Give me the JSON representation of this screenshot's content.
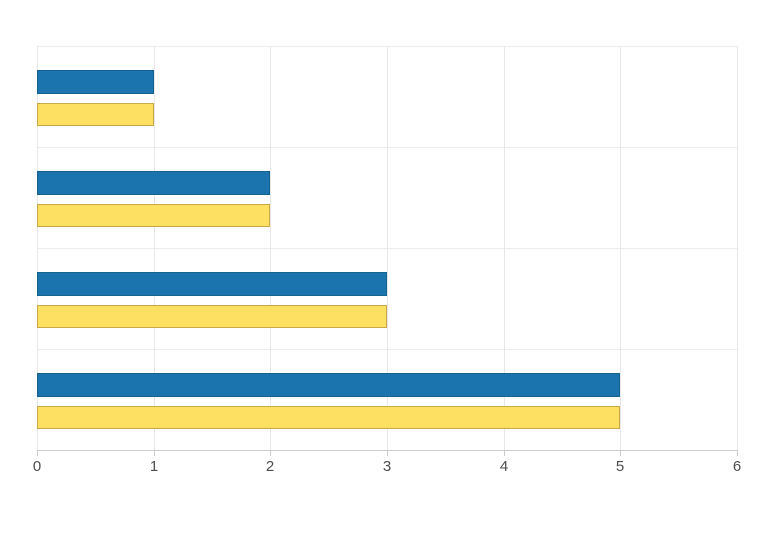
{
  "chart_data": {
    "type": "bar",
    "orientation": "horizontal",
    "title": "",
    "xlabel": "",
    "ylabel": "",
    "xlim": [
      0,
      6
    ],
    "x_ticks": [
      0,
      1,
      2,
      3,
      4,
      5,
      6
    ],
    "grid": true,
    "legend_position": "none",
    "categories": [
      "",
      "",
      "",
      ""
    ],
    "series": [
      {
        "name": "blue-series",
        "fill": "#1b74ad",
        "border": "#15628f",
        "values": [
          1,
          2,
          3,
          5
        ]
      },
      {
        "name": "yellow-series",
        "fill": "#fde061",
        "border": "#cba847",
        "values": [
          1,
          2,
          3,
          5
        ]
      }
    ]
  },
  "colors": {
    "background": "#ffffff",
    "gridline_vertical": "#e7e7e7",
    "gridline_horizontal": "#ececec",
    "axis_line": "#cccccc",
    "tick_label": "#4d4d4d"
  }
}
